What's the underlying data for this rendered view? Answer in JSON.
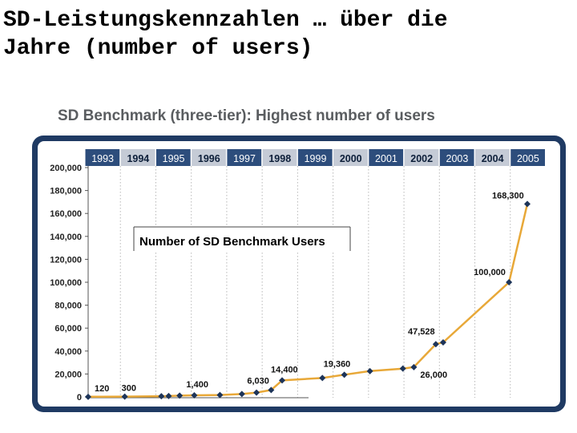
{
  "slide": {
    "title_line1": "SD-Leistungskennzahlen … über die",
    "title_line2": "Jahre (number of users)"
  },
  "chart_data": {
    "type": "line",
    "title": "SD Benchmark (three-tier): Highest number of users",
    "inner_title": "Number of SD Benchmark Users",
    "years": [
      "1993",
      "1994",
      "1995",
      "1996",
      "1997",
      "1998",
      "1999",
      "2000",
      "2001",
      "2002",
      "2003",
      "2004",
      "2005"
    ],
    "bold_years": [
      "1994",
      "1996",
      "1998",
      "2000",
      "2002",
      "2004"
    ],
    "ylim": [
      0,
      200000
    ],
    "yticks": [
      {
        "value": 0,
        "label": "0"
      },
      {
        "value": 20000,
        "label": "20,000"
      },
      {
        "value": 40000,
        "label": "40,000"
      },
      {
        "value": 60000,
        "label": "60,000"
      },
      {
        "value": 80000,
        "label": "80,000"
      },
      {
        "value": 100000,
        "label": "100,000"
      },
      {
        "value": 120000,
        "label": "120,000"
      },
      {
        "value": 140000,
        "label": "140,000"
      },
      {
        "value": 160000,
        "label": "160,000"
      },
      {
        "value": 180000,
        "label": "180,000"
      },
      {
        "value": 200000,
        "label": "200,000"
      }
    ],
    "points": [
      {
        "x": 1993.0,
        "y": 120
      },
      {
        "x": 1994.0,
        "y": 300
      },
      {
        "x": 1995.0,
        "y": 600
      },
      {
        "x": 1995.2,
        "y": 800
      },
      {
        "x": 1995.5,
        "y": 1100
      },
      {
        "x": 1995.9,
        "y": 1400
      },
      {
        "x": 1996.6,
        "y": 1700
      },
      {
        "x": 1997.2,
        "y": 2500
      },
      {
        "x": 1997.6,
        "y": 3800
      },
      {
        "x": 1998.0,
        "y": 6030
      },
      {
        "x": 1998.3,
        "y": 14400
      },
      {
        "x": 1999.4,
        "y": 16500
      },
      {
        "x": 2000.0,
        "y": 19360
      },
      {
        "x": 2000.7,
        "y": 22500
      },
      {
        "x": 2001.6,
        "y": 24700
      },
      {
        "x": 2001.9,
        "y": 26000
      },
      {
        "x": 2002.5,
        "y": 46000
      },
      {
        "x": 2002.7,
        "y": 47528
      },
      {
        "x": 2004.5,
        "y": 100000
      },
      {
        "x": 2005.0,
        "y": 168300
      }
    ],
    "labels": [
      {
        "x": 1993.0,
        "y": 120,
        "text": "120"
      },
      {
        "x": 1994.0,
        "y": 300,
        "text": "300"
      },
      {
        "x": 1995.9,
        "y": 1400,
        "text": "1,400"
      },
      {
        "x": 1998.0,
        "y": 6030,
        "text": "6,030"
      },
      {
        "x": 1998.3,
        "y": 14400,
        "text": "14,400"
      },
      {
        "x": 2000.0,
        "y": 19360,
        "text": "19,360"
      },
      {
        "x": 2001.9,
        "y": 26000,
        "text": "26,000"
      },
      {
        "x": 2002.7,
        "y": 47528,
        "text": "47,528"
      },
      {
        "x": 2004.5,
        "y": 100000,
        "text": "100,000"
      },
      {
        "x": 2005.0,
        "y": 168300,
        "text": "168,300"
      }
    ]
  }
}
